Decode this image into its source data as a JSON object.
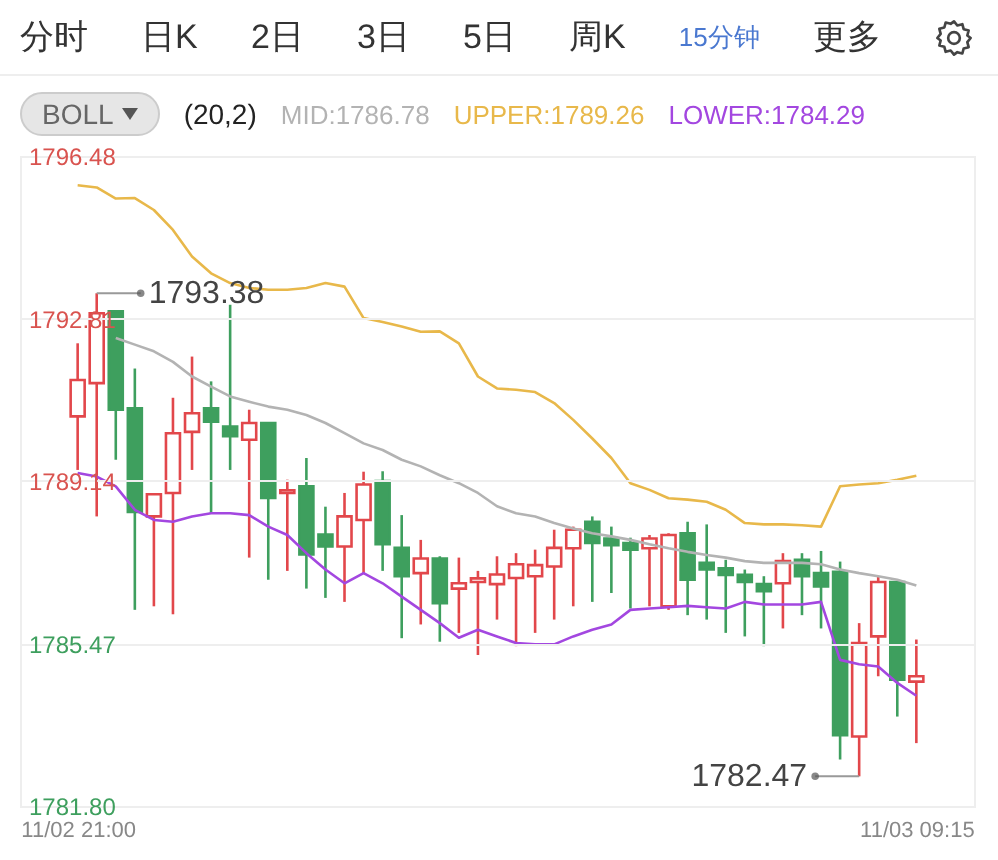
{
  "chart_data": {
    "type": "candlestick",
    "categories": [
      "11/02 21:00",
      null,
      null,
      null,
      null,
      null,
      null,
      null,
      null,
      null,
      null,
      null,
      null,
      null,
      null,
      null,
      null,
      null,
      null,
      null,
      null,
      null,
      null,
      null,
      null,
      null,
      null,
      null,
      null,
      null,
      null,
      null,
      null,
      null,
      null,
      null,
      null,
      null,
      null,
      null,
      null,
      null,
      null,
      null,
      "11/03 09:15"
    ],
    "ohlc": [
      [
        1790.6,
        1792.25,
        1789.39,
        1791.42
      ],
      [
        1791.35,
        1793.38,
        1788.34,
        1792.93
      ],
      [
        1792.97,
        1792.97,
        1789.62,
        1790.75
      ],
      [
        1790.78,
        1791.68,
        1786.23,
        1788.44
      ],
      [
        1788.34,
        1788.84,
        1786.31,
        1788.84
      ],
      [
        1788.87,
        1791.02,
        1786.13,
        1790.22
      ],
      [
        1790.25,
        1791.95,
        1789.39,
        1790.67
      ],
      [
        1790.78,
        1791.39,
        1788.41,
        1790.48
      ],
      [
        1790.37,
        1793.12,
        1789.39,
        1790.15
      ],
      [
        1790.07,
        1790.75,
        1787.41,
        1790.45
      ],
      [
        1790.45,
        1790.45,
        1786.91,
        1788.76
      ],
      [
        1788.87,
        1789.17,
        1787.11,
        1788.93
      ],
      [
        1789.02,
        1789.66,
        1786.71,
        1787.48
      ],
      [
        1787.93,
        1788.56,
        1786.5,
        1787.66
      ],
      [
        1787.66,
        1788.87,
        1786.41,
        1788.34
      ],
      [
        1788.26,
        1789.35,
        1787.06,
        1789.06
      ],
      [
        1789.14,
        1789.36,
        1787.11,
        1787.71
      ],
      [
        1787.63,
        1788.37,
        1785.59,
        1786.99
      ],
      [
        1787.06,
        1787.81,
        1785.9,
        1787.39
      ],
      [
        1787.39,
        1787.44,
        1785.51,
        1786.38
      ],
      [
        1786.71,
        1787.41,
        1785.71,
        1786.83
      ],
      [
        1786.86,
        1787.11,
        1785.21,
        1786.94
      ],
      [
        1786.81,
        1787.44,
        1786.01,
        1787.03
      ],
      [
        1786.95,
        1787.51,
        1785.41,
        1787.26
      ],
      [
        1786.99,
        1787.59,
        1785.71,
        1787.24
      ],
      [
        1787.21,
        1788.04,
        1786.01,
        1787.63
      ],
      [
        1787.62,
        1788.11,
        1786.31,
        1788.04
      ],
      [
        1788.22,
        1788.34,
        1786.41,
        1787.74
      ],
      [
        1787.84,
        1788.11,
        1786.61,
        1787.69
      ],
      [
        1787.74,
        1787.86,
        1786.26,
        1787.59
      ],
      [
        1787.62,
        1787.92,
        1786.31,
        1787.84
      ],
      [
        1786.31,
        1787.96,
        1786.23,
        1787.92
      ],
      [
        1787.96,
        1788.22,
        1786.11,
        1786.91
      ],
      [
        1787.29,
        1788.16,
        1786.01,
        1787.14
      ],
      [
        1787.17,
        1787.36,
        1785.71,
        1787.02
      ],
      [
        1787.02,
        1787.14,
        1785.63,
        1786.86
      ],
      [
        1786.81,
        1786.99,
        1785.41,
        1786.65
      ],
      [
        1786.83,
        1787.51,
        1785.81,
        1787.33
      ],
      [
        1787.36,
        1787.51,
        1786.11,
        1786.99
      ],
      [
        1787.06,
        1787.56,
        1785.81,
        1786.76
      ],
      [
        1787.09,
        1787.32,
        1782.85,
        1783.4
      ],
      [
        1783.37,
        1785.93,
        1782.47,
        1785.48
      ],
      [
        1785.63,
        1786.99,
        1784.73,
        1786.86
      ],
      [
        1786.86,
        1786.86,
        1783.82,
        1784.65
      ],
      [
        1784.61,
        1785.56,
        1783.22,
        1784.73
      ]
    ],
    "colors": [
      "#e2474b",
      "#e2474b",
      "#3e9f5e",
      "#3e9f5e",
      "#e2474b",
      "#e2474b",
      "#e2474b",
      "#3e9f5e",
      "#3e9f5e",
      "#e2474b",
      "#3e9f5e",
      "#e2474b",
      "#3e9f5e",
      "#3e9f5e",
      "#e2474b",
      "#e2474b",
      "#3e9f5e",
      "#3e9f5e",
      "#e2474b",
      "#3e9f5e",
      "#e2474b",
      "#e2474b",
      "#e2474b",
      "#e2474b",
      "#e2474b",
      "#e2474b",
      "#e2474b",
      "#3e9f5e",
      "#3e9f5e",
      "#3e9f5e",
      "#e2474b",
      "#e2474b",
      "#3e9f5e",
      "#3e9f5e",
      "#3e9f5e",
      "#3e9f5e",
      "#3e9f5e",
      "#e2474b",
      "#3e9f5e",
      "#3e9f5e",
      "#3e9f5e",
      "#e2474b",
      "#e2474b",
      "#3e9f5e",
      "#e2474b"
    ],
    "series": [
      {
        "name": "MID:1786.78",
        "type": "line",
        "color": "#b3b3b3",
        "values": [
          null,
          null,
          1792.37,
          1792.22,
          1792.07,
          1791.83,
          1791.5,
          1791.27,
          1791.05,
          1790.93,
          1790.82,
          1790.75,
          1790.63,
          1790.45,
          1790.22,
          1789.99,
          1789.84,
          1789.62,
          1789.47,
          1789.27,
          1789.09,
          1788.87,
          1788.57,
          1788.41,
          1788.34,
          1788.19,
          1788.07,
          1787.96,
          1787.89,
          1787.81,
          1787.71,
          1787.62,
          1787.54,
          1787.47,
          1787.41,
          1787.33,
          1787.29,
          1787.29,
          1787.29,
          1787.26,
          1787.14,
          1787.06,
          1786.99,
          1786.91,
          1786.78
        ]
      },
      {
        "name": "UPPER:1789.26",
        "type": "line",
        "color": "#e8b84a",
        "values": [
          1795.82,
          1795.77,
          1795.52,
          1795.53,
          1795.26,
          1794.81,
          1794.21,
          1793.83,
          1793.61,
          1793.5,
          1793.46,
          1793.46,
          1793.5,
          1793.61,
          1793.53,
          1792.82,
          1792.73,
          1792.63,
          1792.51,
          1792.52,
          1792.25,
          1791.5,
          1791.23,
          1791.2,
          1791.15,
          1790.9,
          1790.52,
          1790.1,
          1789.66,
          1789.09,
          1788.94,
          1788.75,
          1788.72,
          1788.67,
          1788.49,
          1788.19,
          1788.16,
          1788.16,
          1788.14,
          1788.11,
          1789.02,
          1789.06,
          1789.09,
          1789.17,
          1789.26
        ]
      },
      {
        "name": "LOWER:1784.29",
        "type": "line",
        "color": "#a347e0",
        "values": [
          1789.32,
          1789.24,
          1789.02,
          1788.49,
          1788.26,
          1788.22,
          1788.34,
          1788.41,
          1788.41,
          1788.37,
          1788.11,
          1787.92,
          1787.51,
          1787.14,
          1786.83,
          1787.06,
          1786.83,
          1786.53,
          1786.23,
          1785.93,
          1785.6,
          1785.78,
          1785.63,
          1785.48,
          1785.45,
          1785.45,
          1785.63,
          1785.78,
          1785.9,
          1786.23,
          1786.26,
          1786.29,
          1786.32,
          1786.29,
          1786.26,
          1786.41,
          1786.35,
          1786.35,
          1786.35,
          1786.41,
          1785.1,
          1785.0,
          1784.95,
          1784.58,
          1784.29
        ]
      }
    ],
    "ylim": [
      1781.8,
      1796.48
    ],
    "yticks": [
      {
        "value": 1781.8,
        "label": "1781.80"
      },
      1785.47,
      1789.14,
      1792.81,
      1796.48
    ],
    "grid": "y",
    "legend": "top",
    "annotations": [
      "分时",
      "日K",
      "2日",
      "3日",
      "5日",
      "周K",
      "15分钟",
      "更多",
      "BOLL",
      "(20,2)",
      "1793.38",
      "1782.47"
    ]
  }
}
